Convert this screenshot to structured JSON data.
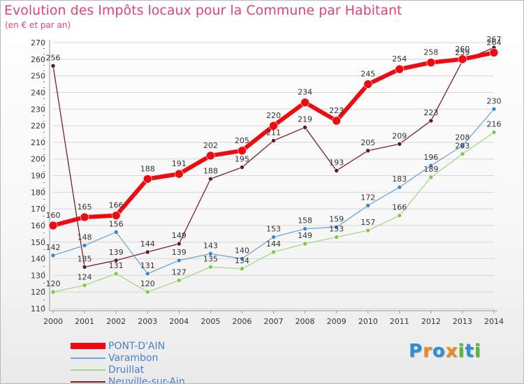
{
  "title": "Evolution des Impôts locaux pour la Commune par Habitant",
  "subtitle": "(en € et par an)",
  "logo": [
    "P",
    "r",
    "o",
    "x",
    "i",
    "t",
    "i"
  ],
  "logo_colors": [
    "#2e8fd8",
    "#f08a1c",
    "#2e8fd8",
    "#f08a1c",
    "#59b833",
    "#2e8fd8",
    "#59b833"
  ],
  "chart_data": {
    "type": "line",
    "title": "Evolution des Impôts locaux pour la Commune par Habitant",
    "subtitle": "(en € et par an)",
    "x": [
      "2000",
      "2001",
      "2002",
      "2003",
      "2004",
      "2005",
      "2006",
      "2007",
      "2008",
      "2009",
      "2010",
      "2011",
      "2012",
      "2013",
      "2014"
    ],
    "ylim": [
      110,
      270
    ],
    "yticks": [
      110,
      120,
      130,
      140,
      150,
      160,
      170,
      180,
      190,
      200,
      210,
      220,
      230,
      240,
      250,
      260,
      270
    ],
    "grid": true,
    "legend_position": "bottom-left",
    "series": [
      {
        "name": "Neuville-sur-Ain",
        "color": "#7a1f28",
        "marker": "#5e1a1e",
        "width": 1.3,
        "dot": 3,
        "values": [
          256,
          135,
          139,
          144,
          149,
          188,
          195,
          211,
          219,
          193,
          205,
          209,
          223,
          259,
          267
        ]
      },
      {
        "name": "Druillat",
        "color": "#a8d68a",
        "marker": "#7ecb43",
        "width": 1.3,
        "dot": 3,
        "values": [
          120,
          124,
          131,
          120,
          127,
          135,
          134,
          144,
          149,
          153,
          157,
          166,
          189,
          203,
          216
        ]
      },
      {
        "name": "Varambon",
        "color": "#6fa6d6",
        "marker": "#3a86c9",
        "width": 1.3,
        "dot": 3,
        "values": [
          142,
          148,
          156,
          131,
          139,
          143,
          140,
          153,
          158,
          159,
          172,
          183,
          196,
          208,
          230
        ]
      },
      {
        "name": "PONT-D'AIN",
        "color": "#ee0a10",
        "marker": "#ee0a10",
        "width": 6,
        "dot": 6,
        "values": [
          160,
          165,
          166,
          188,
          191,
          202,
          205,
          220,
          234,
          223,
          245,
          254,
          258,
          260,
          264
        ]
      }
    ]
  }
}
